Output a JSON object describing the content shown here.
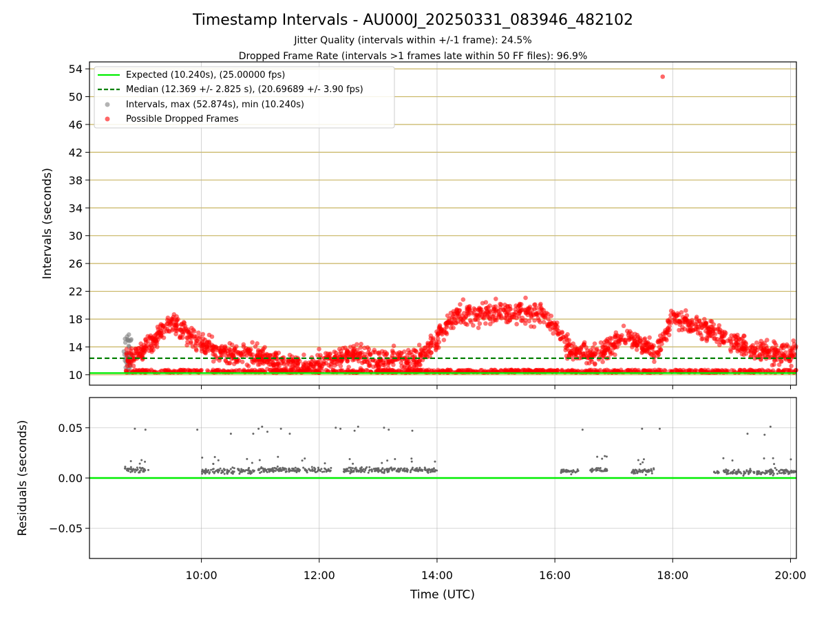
{
  "figure": {
    "title": "Timestamp Intervals - AU000J_20250331_083946_482102",
    "subtitle1": "Jitter Quality (intervals within +/-1 frame): 24.5%",
    "subtitle2": "Dropped Frame Rate (intervals >1 frames late within 50 FF files): 96.9%"
  },
  "colors": {
    "expected": "#00ee00",
    "median": "#008000",
    "interval": "#808080",
    "dropped": "#ff0000",
    "hgrid_top": "#c8b460",
    "grid": "#b0b0b0",
    "residual": "#666666"
  },
  "chart_data": [
    {
      "type": "scatter",
      "ylabel": "Intervals (seconds)",
      "ylim": [
        8.5,
        55
      ],
      "xlim_hours": [
        8.1,
        20.1
      ],
      "yticks": [
        10,
        14,
        18,
        22,
        26,
        30,
        34,
        38,
        42,
        46,
        50,
        54
      ],
      "grid": "horizontal",
      "legend_position": "upper-left",
      "legend": [
        "Expected (10.240s), (25.00000 fps)",
        "Median (12.369 +/- 2.825 s), (20.69689 +/- 3.90 fps)",
        "Intervals, max (52.874s), min (10.240s)",
        "Possible Dropped Frames"
      ],
      "expected_line": 10.24,
      "median_line": 12.369,
      "max_interval": 52.874,
      "dropped_trend": {
        "x_hours": [
          8.75,
          9.0,
          9.25,
          9.5,
          9.75,
          10.0,
          10.25,
          10.5,
          10.75,
          11.0,
          11.25,
          11.5,
          11.75,
          12.0,
          12.25,
          12.5,
          12.75,
          13.0,
          13.25,
          13.5,
          13.75,
          14.0,
          14.25,
          14.5,
          14.75,
          15.0,
          15.25,
          15.5,
          15.75,
          16.0,
          16.25,
          16.5,
          16.75,
          17.0,
          17.25,
          17.5,
          17.75,
          18.0,
          18.25,
          18.5,
          18.75,
          19.0,
          19.25,
          19.5,
          19.75,
          20.0,
          20.1
        ],
        "y_seconds": [
          12.5,
          13.5,
          15.5,
          17.5,
          16.0,
          14.5,
          13.5,
          13.0,
          12.8,
          12.5,
          12.0,
          11.5,
          11.2,
          11.5,
          12.5,
          13.0,
          12.5,
          12.2,
          12.0,
          12.0,
          12.5,
          15.0,
          18.0,
          19.0,
          18.8,
          18.8,
          19.0,
          19.0,
          18.8,
          17.0,
          13.5,
          13.0,
          12.8,
          14.5,
          15.5,
          14.0,
          13.5,
          18.5,
          17.5,
          16.5,
          16.0,
          15.0,
          14.0,
          13.5,
          13.0,
          12.8,
          14.0
        ]
      },
      "outlier_points": [
        {
          "x_hours": 17.83,
          "y_seconds": 52.874
        }
      ]
    },
    {
      "type": "scatter",
      "xlabel": "Time (UTC)",
      "ylabel": "Residuals (seconds)",
      "ylim": [
        -0.08,
        0.08
      ],
      "yticks": [
        -0.05,
        0.0,
        0.05
      ],
      "ytick_labels": [
        "−0.05",
        "0.00",
        "0.05"
      ],
      "xticks_hours": [
        10,
        12,
        14,
        16,
        18,
        20
      ],
      "xtick_labels": [
        "10:00",
        "12:00",
        "14:00",
        "16:00",
        "18:00",
        "20:00"
      ],
      "grid": "both",
      "zero_line": 0.0,
      "residual_clusters": [
        {
          "x_range_hours": [
            8.7,
            9.1
          ],
          "y_center": 0.008
        },
        {
          "x_range_hours": [
            10.0,
            11.0
          ],
          "y_center": 0.007
        },
        {
          "x_range_hours": [
            11.0,
            12.2
          ],
          "y_center": 0.008
        },
        {
          "x_range_hours": [
            12.4,
            13.6
          ],
          "y_center": 0.008
        },
        {
          "x_range_hours": [
            13.6,
            14.0
          ],
          "y_center": 0.008
        },
        {
          "x_range_hours": [
            16.1,
            16.4
          ],
          "y_center": 0.007
        },
        {
          "x_range_hours": [
            16.6,
            16.9
          ],
          "y_center": 0.008
        },
        {
          "x_range_hours": [
            17.3,
            17.7
          ],
          "y_center": 0.007
        },
        {
          "x_range_hours": [
            18.7,
            20.1
          ],
          "y_center": 0.006
        }
      ],
      "high_residuals": [
        {
          "x_hours": 8.87,
          "y_seconds": 0.049
        },
        {
          "x_hours": 9.05,
          "y_seconds": 0.048
        },
        {
          "x_hours": 9.93,
          "y_seconds": 0.048
        },
        {
          "x_hours": 10.5,
          "y_seconds": 0.044
        },
        {
          "x_hours": 10.88,
          "y_seconds": 0.044
        },
        {
          "x_hours": 10.97,
          "y_seconds": 0.049
        },
        {
          "x_hours": 11.03,
          "y_seconds": 0.051
        },
        {
          "x_hours": 11.12,
          "y_seconds": 0.046
        },
        {
          "x_hours": 11.35,
          "y_seconds": 0.049
        },
        {
          "x_hours": 11.5,
          "y_seconds": 0.044
        },
        {
          "x_hours": 12.28,
          "y_seconds": 0.05
        },
        {
          "x_hours": 12.36,
          "y_seconds": 0.049
        },
        {
          "x_hours": 12.6,
          "y_seconds": 0.047
        },
        {
          "x_hours": 12.66,
          "y_seconds": 0.051
        },
        {
          "x_hours": 13.1,
          "y_seconds": 0.05
        },
        {
          "x_hours": 13.18,
          "y_seconds": 0.048
        },
        {
          "x_hours": 13.58,
          "y_seconds": 0.047
        },
        {
          "x_hours": 16.47,
          "y_seconds": 0.048
        },
        {
          "x_hours": 17.48,
          "y_seconds": 0.049
        },
        {
          "x_hours": 17.78,
          "y_seconds": 0.049
        },
        {
          "x_hours": 19.27,
          "y_seconds": 0.044
        },
        {
          "x_hours": 19.56,
          "y_seconds": 0.043
        },
        {
          "x_hours": 19.66,
          "y_seconds": 0.051
        }
      ]
    }
  ]
}
